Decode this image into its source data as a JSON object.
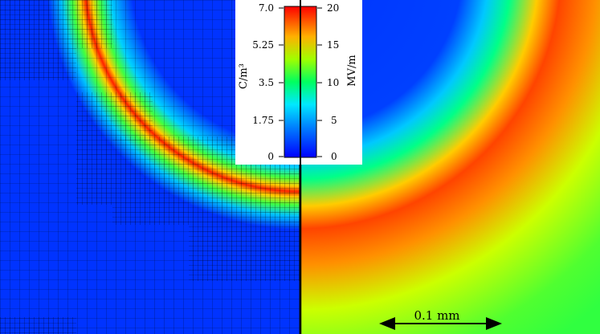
{
  "colorbar": {
    "left_label": "C/m³",
    "right_label": "MV/m",
    "left_ticks": [
      "7.0",
      "5.25",
      "3.5",
      "1.75",
      "0"
    ],
    "right_ticks": [
      "20",
      "15",
      "10",
      "5",
      "0"
    ],
    "left_range": [
      0,
      7.0
    ],
    "right_range": [
      0,
      20
    ]
  },
  "scale_bar": {
    "label": "0.1 mm"
  },
  "colors": {
    "background_low": "#0033ff",
    "mid": "#00ff66",
    "high": "#ff2200"
  }
}
